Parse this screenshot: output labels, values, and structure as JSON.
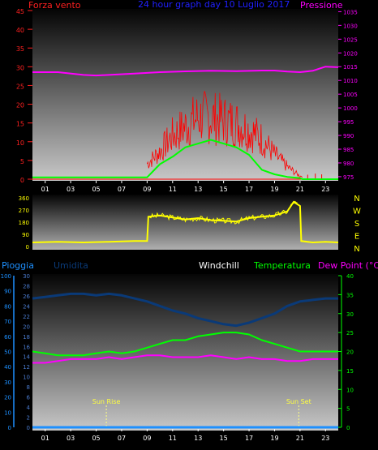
{
  "header": {
    "left_label": "Forza vento",
    "title": "24 hour graph day 10 Luglio 2017",
    "right_label": "Pressione"
  },
  "colors": {
    "wind": "#ff0000",
    "gust": "#00ff00",
    "pressure": "#ff00ff",
    "direction": "#ffff00",
    "rain": "#1e90ff",
    "humidity": "#0a3a78",
    "temperature": "#00ff00",
    "dewpoint": "#ff00ff",
    "title": "#2020ff",
    "axis_left": "#ff2020",
    "axis_right": "#ff00ff"
  },
  "hour_ticks": [
    "01",
    "03",
    "05",
    "07",
    "09",
    "11",
    "13",
    "15",
    "17",
    "19",
    "21",
    "23"
  ],
  "chart_data": [
    {
      "type": "line",
      "name": "wind-pressure",
      "left_axis": {
        "ticks": [
          0,
          5,
          10,
          15,
          20,
          25,
          30,
          35,
          40,
          45
        ],
        "range": [
          0,
          45
        ]
      },
      "right_axis": {
        "ticks": [
          975,
          980,
          985,
          990,
          995,
          1000,
          1005,
          1010,
          1015,
          1020,
          1025,
          1030,
          1035
        ],
        "range": [
          973.5,
          1036
        ]
      },
      "series": [
        {
          "name": "Pressione",
          "x": [
            0,
            2,
            4,
            5,
            6,
            8,
            10,
            12,
            14,
            16,
            18,
            19,
            20,
            21,
            22,
            23,
            24
          ],
          "values": [
            1013,
            1013,
            1012,
            1011.8,
            1012,
            1012.5,
            1013,
            1013.3,
            1013.5,
            1013.4,
            1013.6,
            1013.6,
            1013.2,
            1013,
            1013.5,
            1015,
            1014.8
          ]
        },
        {
          "x": [
            0,
            8.8,
            9,
            10,
            11,
            12,
            13,
            14,
            15,
            16,
            17,
            18,
            19,
            20,
            21,
            21.2,
            24
          ],
          "values": [
            0.5,
            0.5,
            0.5,
            4,
            6,
            8.5,
            9.5,
            10.5,
            9.5,
            8.5,
            6.5,
            2.5,
            1.3,
            0.6,
            0.3,
            0,
            0
          ]
        },
        {
          "x": [
            0,
            8.8,
            9,
            10,
            11,
            12,
            13,
            14,
            15,
            16,
            17,
            18,
            19,
            20,
            21,
            22,
            23
          ],
          "values": [
            0,
            0,
            5,
            9,
            14,
            17,
            20,
            20,
            19,
            18,
            16,
            13,
            8,
            4,
            1,
            1,
            1
          ]
        }
      ]
    },
    {
      "type": "line",
      "name": "wind-direction",
      "left_axis": {
        "ticks": [
          0,
          90,
          180,
          270,
          360
        ],
        "range": [
          0,
          360
        ]
      },
      "right_labels": [
        "N",
        "W",
        "S",
        "E",
        "N"
      ],
      "series": [
        {
          "x": [
            0,
            2,
            4,
            6,
            8,
            9,
            9.1,
            10,
            11,
            12,
            13,
            14,
            15,
            16,
            17,
            18,
            19,
            20,
            20.5,
            21,
            21.1,
            22,
            23,
            24
          ],
          "values": [
            30,
            35,
            30,
            35,
            40,
            40,
            220,
            230,
            215,
            200,
            210,
            195,
            190,
            185,
            210,
            220,
            230,
            260,
            330,
            300,
            40,
            30,
            35,
            30
          ]
        }
      ]
    },
    {
      "type": "line",
      "name": "climate",
      "header": {
        "rain": "Pioggia",
        "humidity": "Umidita",
        "windchill": "Windchill",
        "temperature": "Temperatura",
        "dewpoint": "Dew Point (°C)"
      },
      "rain_axis": {
        "ticks": [
          0,
          10,
          20,
          30,
          40,
          50,
          60,
          70,
          80,
          90,
          100
        ],
        "range": [
          0,
          100
        ]
      },
      "humidity_axis": {
        "ticks": [
          0,
          2,
          4,
          6,
          8,
          10,
          12,
          14,
          16,
          18,
          20,
          22,
          24,
          26,
          28,
          30
        ],
        "range": [
          0,
          30
        ]
      },
      "temperature_axis": {
        "ticks": [
          0,
          5,
          10,
          15,
          20,
          25,
          30,
          35,
          40
        ],
        "range": [
          0,
          40
        ]
      },
      "annotations": [
        "Sun Rise",
        "Sun Set"
      ],
      "sun_hours": [
        5.8,
        20.9
      ],
      "series": [
        {
          "x": [
            0,
            1,
            2,
            3,
            4,
            5,
            6,
            7,
            8,
            9,
            10,
            11,
            12,
            13,
            14,
            15,
            16,
            17,
            18,
            19,
            20,
            21,
            22,
            23,
            24
          ],
          "values": [
            85,
            86,
            87,
            88,
            88,
            87,
            88,
            87,
            85,
            83,
            80,
            77,
            75,
            72,
            70,
            68,
            67,
            69,
            72,
            75,
            80,
            83,
            84,
            85,
            85
          ]
        },
        {
          "x": [
            0,
            1,
            2,
            3,
            4,
            5,
            6,
            7,
            8,
            9,
            10,
            11,
            12,
            13,
            14,
            15,
            16,
            17,
            18,
            19,
            20,
            21,
            22,
            23,
            24
          ],
          "values": [
            20,
            19.5,
            19,
            19,
            19,
            19.5,
            20,
            19.5,
            20,
            21,
            22,
            23,
            23,
            24,
            24.5,
            25,
            25,
            24.5,
            23,
            22,
            21,
            20,
            20,
            20,
            20
          ]
        },
        {
          "x": [
            0,
            1,
            2,
            3,
            4,
            5,
            6,
            7,
            8,
            9,
            10,
            11,
            12,
            13,
            14,
            15,
            16,
            17,
            18,
            19,
            20,
            21,
            22,
            23,
            24
          ],
          "values": [
            17,
            17,
            17.5,
            18,
            18,
            18,
            18.5,
            18,
            18.5,
            19,
            19,
            18.5,
            18.5,
            18.5,
            19,
            18.5,
            18,
            18.5,
            18,
            18,
            17.5,
            17.5,
            18,
            18,
            18
          ]
        },
        {
          "x": [
            0,
            24
          ],
          "values": [
            0,
            0
          ]
        }
      ]
    }
  ]
}
